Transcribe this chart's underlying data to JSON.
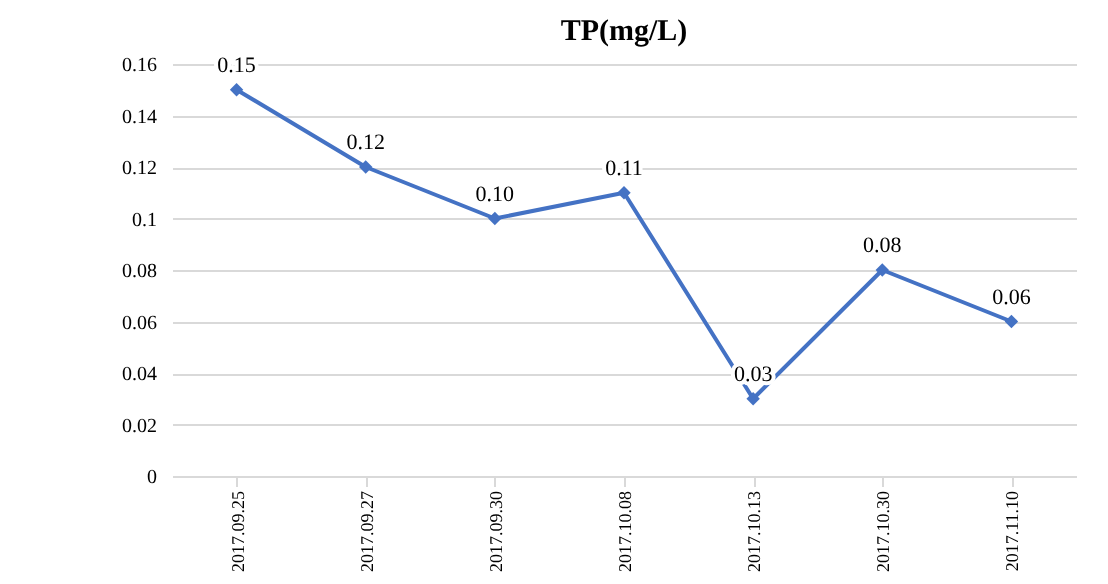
{
  "chart_data": {
    "type": "line",
    "title": "TP(mg/L)",
    "categories": [
      "2017.09.25",
      "2017.09.27",
      "2017.09.30",
      "2017.10.08",
      "2017.10.13",
      "2017.10.30",
      "2017.11.10"
    ],
    "series": [
      {
        "color": "#4472c4",
        "values": [
          0.15,
          0.12,
          0.1,
          0.11,
          0.03,
          0.08,
          0.06
        ],
        "value_labels": [
          "0.15",
          "0.12",
          "0.10",
          "0.11",
          "0.03",
          "0.08",
          "0.06"
        ]
      }
    ],
    "ylim": [
      0,
      0.16
    ],
    "yticks": [
      0,
      0.02,
      0.04,
      0.06,
      0.08,
      0.1,
      0.12,
      0.14,
      0.16
    ],
    "grid": "y",
    "marker": "diamond",
    "line_style": "solid",
    "legend": false
  }
}
